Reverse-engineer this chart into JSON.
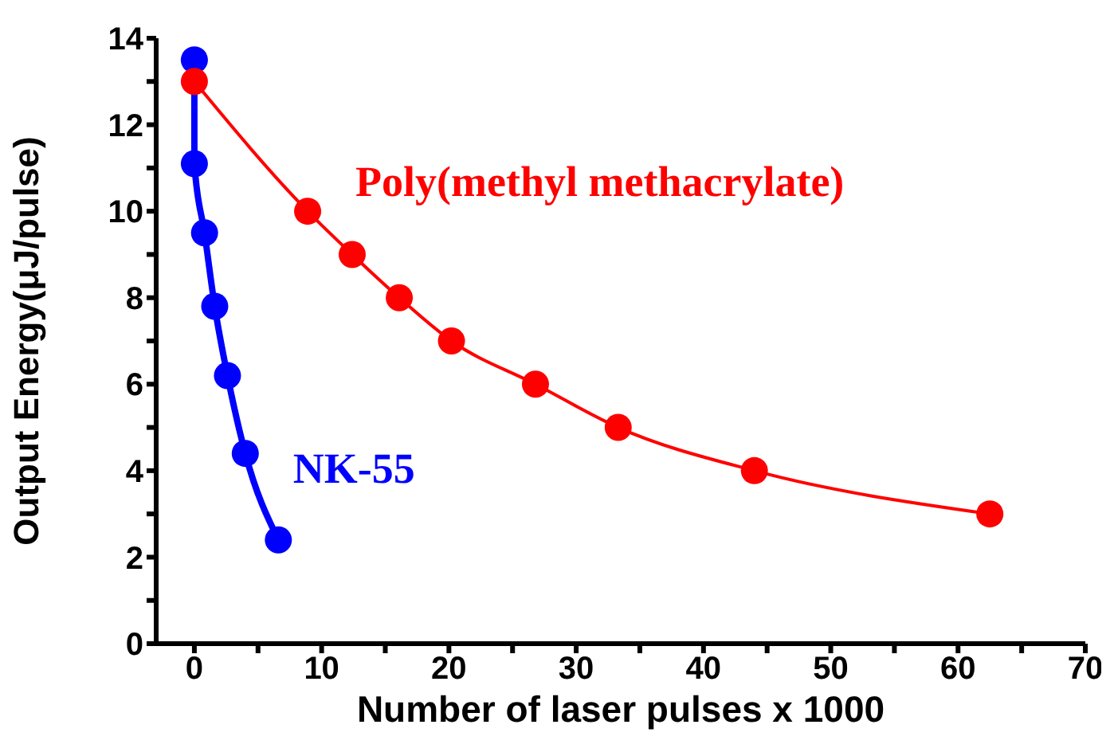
{
  "chart_data": {
    "type": "line",
    "xlabel": "Number of laser pulses x 1000",
    "ylabel": "Output Energy(μJ/pulse)",
    "xlim": [
      -3,
      70
    ],
    "ylim": [
      0,
      14
    ],
    "xticks": [
      0,
      {
        "value": 5,
        "label": null
      },
      10,
      {
        "value": 15,
        "label": null
      },
      20,
      {
        "value": 25,
        "label": null
      },
      30,
      {
        "value": 35,
        "label": null
      },
      40,
      {
        "value": 45,
        "label": null
      },
      50,
      {
        "value": 55,
        "label": null
      },
      60,
      {
        "value": 65,
        "label": null
      },
      70
    ],
    "yticks": [
      0,
      {
        "value": 1,
        "label": null
      },
      2,
      {
        "value": 3,
        "label": null
      },
      4,
      {
        "value": 5,
        "label": null
      },
      6,
      {
        "value": 7,
        "label": null
      },
      8,
      {
        "value": 9,
        "label": null
      },
      10,
      {
        "value": 11,
        "label": null
      },
      12,
      {
        "value": 13,
        "label": null
      },
      14
    ],
    "grid": false,
    "legend": false,
    "marker": "circle",
    "line_style": "solid",
    "series": [
      {
        "name": "NK-55",
        "color": "#0000ff",
        "x": [
          0,
          0,
          0.8,
          1.6,
          2.6,
          4.0,
          6.6
        ],
        "values": [
          13.5,
          11.1,
          9.5,
          7.8,
          6.2,
          4.4,
          2.4
        ]
      },
      {
        "name": "Poly(methyl methacrylate)",
        "color": "#ff0000",
        "x": [
          0,
          8.9,
          12.4,
          16.1,
          20.2,
          26.8,
          33.3,
          44.0,
          62.5
        ],
        "values": [
          13,
          10,
          9,
          8,
          7,
          6,
          5,
          4,
          3
        ]
      }
    ]
  }
}
